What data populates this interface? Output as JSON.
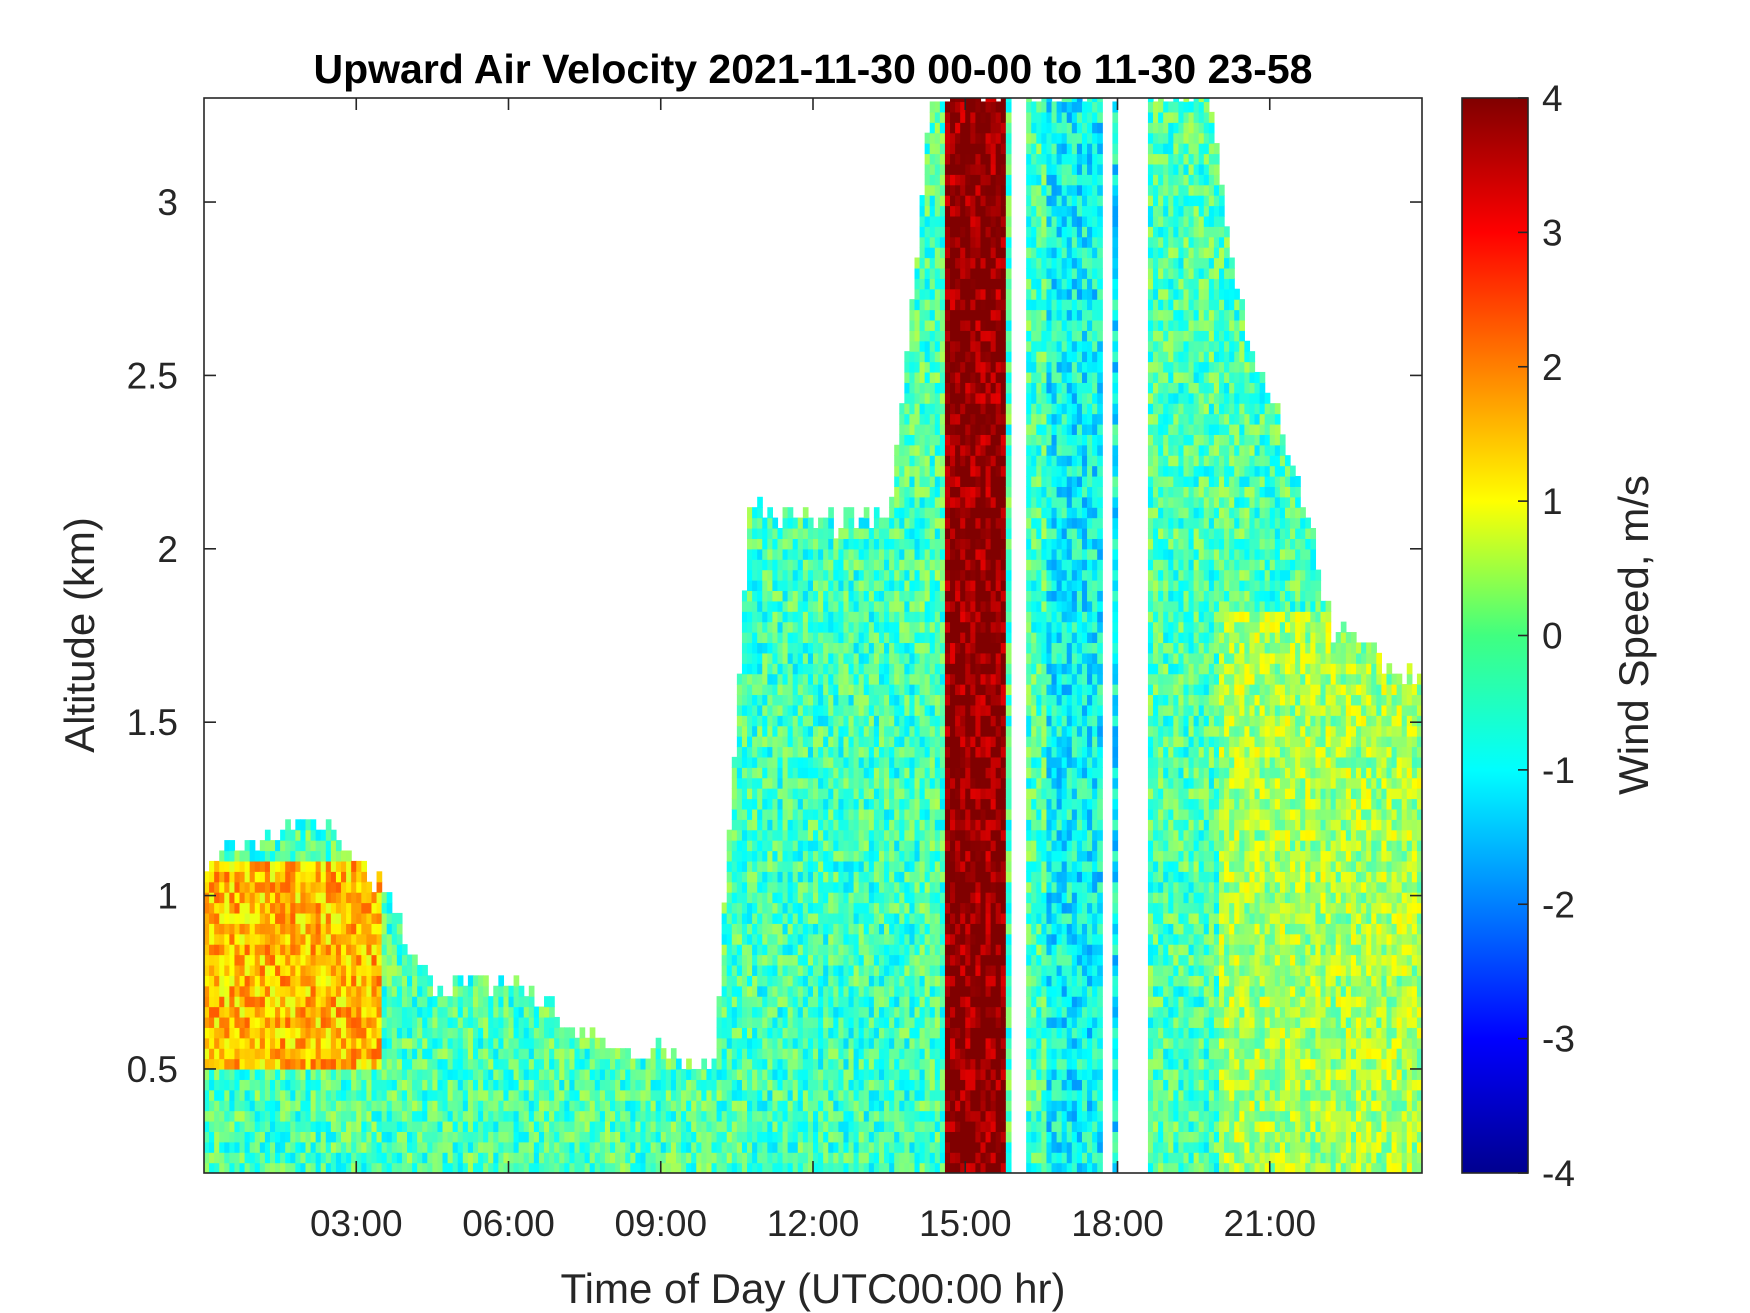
{
  "chart_data": {
    "type": "heatmap",
    "title": "Upward Air Velocity 2021-11-30 00-00 to 11-30 23-58",
    "xlabel": "Time of Day (UTC00:00 hr)",
    "ylabel": "Altitude (km)",
    "colorbar_label": "Wind Speed, m/s",
    "colormap": "jet",
    "xlim": [
      0,
      24
    ],
    "ylim": [
      0.2,
      3.3
    ],
    "clim": [
      -4,
      4
    ],
    "x_ticks": [
      3,
      6,
      9,
      12,
      15,
      18,
      21
    ],
    "x_tick_labels": [
      "03:00",
      "06:00",
      "09:00",
      "12:00",
      "15:00",
      "18:00",
      "21:00"
    ],
    "y_ticks": [
      0.5,
      1,
      1.5,
      2,
      2.5,
      3
    ],
    "y_tick_labels": [
      "0.5",
      "1",
      "1.5",
      "2",
      "2.5",
      "3"
    ],
    "colorbar_ticks": [
      -4,
      -3,
      -2,
      -1,
      0,
      1,
      2,
      3,
      4
    ],
    "colorbar_tick_labels": [
      "-4",
      "-3",
      "-2",
      "-1",
      "0",
      "1",
      "2",
      "3",
      "4"
    ],
    "grid": false,
    "data_top_km_by_hour": [
      [
        0.0,
        1.1
      ],
      [
        1.2,
        1.15
      ],
      [
        2.3,
        1.2
      ],
      [
        3.5,
        1.0
      ],
      [
        4.5,
        0.7
      ],
      [
        6.0,
        0.75
      ],
      [
        8.0,
        0.55
      ],
      [
        10.0,
        0.5
      ],
      [
        10.7,
        2.1
      ],
      [
        12.5,
        2.05
      ],
      [
        13.5,
        2.1
      ],
      [
        14.3,
        3.3
      ],
      [
        15.3,
        3.3
      ],
      [
        16.0,
        3.3
      ],
      [
        17.5,
        3.3
      ],
      [
        18.7,
        3.3
      ],
      [
        19.7,
        3.3
      ],
      [
        20.5,
        2.6
      ],
      [
        21.5,
        2.2
      ],
      [
        22.2,
        1.75
      ],
      [
        24.0,
        1.6
      ]
    ],
    "regions": [
      {
        "x": [
          0.0,
          3.5
        ],
        "y": [
          0.5,
          1.1
        ],
        "value": 1.5
      },
      {
        "x": [
          10.7,
          14.0
        ],
        "y": [
          0.2,
          2.1
        ],
        "value": -0.5
      },
      {
        "x": [
          14.5,
          15.7
        ],
        "y": [
          0.2,
          3.3
        ],
        "value": 4.0
      },
      {
        "x": [
          16.5,
          18.0
        ],
        "y": [
          0.2,
          3.3
        ],
        "value": -1.0
      },
      {
        "x": [
          20.0,
          24.0
        ],
        "y": [
          0.2,
          1.8
        ],
        "value": 0.3
      }
    ],
    "gaps_x_hours": [
      [
        17.6,
        18.5
      ],
      [
        15.8,
        16.2
      ]
    ]
  }
}
